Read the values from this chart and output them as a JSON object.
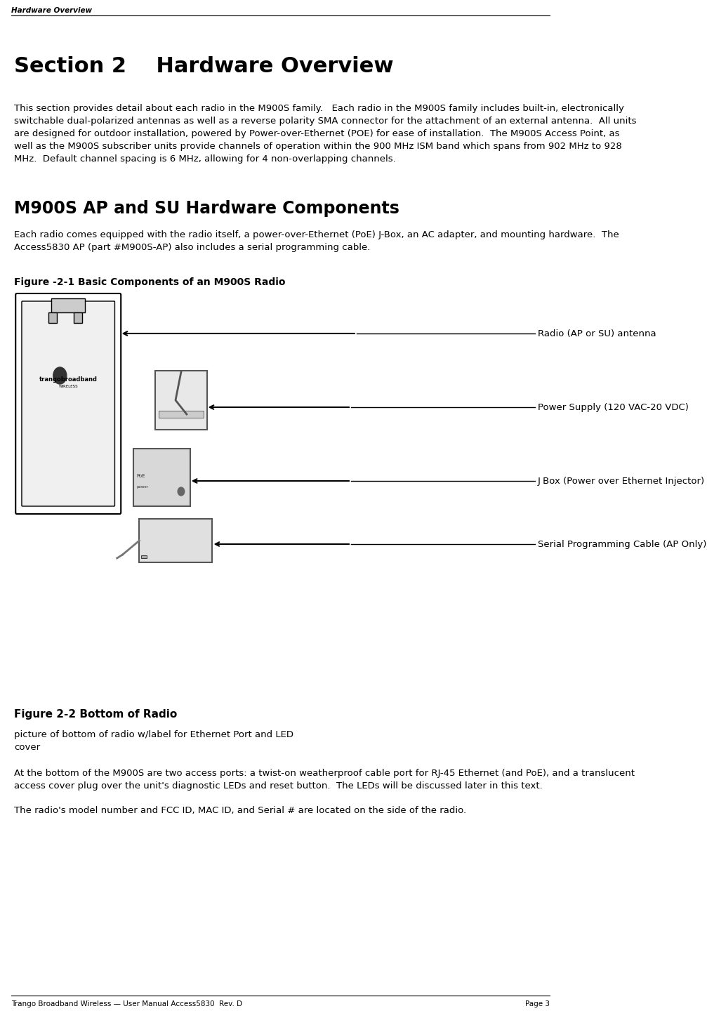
{
  "header_text": "Hardware Overview",
  "section_title": "Section 2    Hardware Overview",
  "para1": "This section provides detail about each radio in the M900S family.   Each radio in the M900S family includes built-in, electronically\nswitchable dual-polarized antennas as well as a reverse polarity SMA connector for the attachment of an external antenna.  All units\nare designed for outdoor installation, powered by Power-over-Ethernet (POE) for ease of installation.  The M900S Access Point, as\nwell as the M900S subscriber units provide channels of operation within the 900 MHz ISM band which spans from 902 MHz to 928\nMHz.  Default channel spacing is 6 MHz, allowing for 4 non-overlapping channels.",
  "subsection_title": "M900S AP and SU Hardware Components",
  "para2": "Each radio comes equipped with the radio itself, a power-over-Ethernet (PoE) J-Box, an AC adapter, and mounting hardware.  The\nAccess5830 AP (part #M900S-AP) also includes a serial programming cable.",
  "fig1_title": "Figure -2-1 Basic Components of an M900S Radio",
  "label1": "Radio (AP or SU) antenna",
  "label2": "Power Supply (120 VAC-20 VDC)",
  "label3": "J Box (Power over Ethernet Injector)",
  "label4": "Serial Programming Cable (AP Only)",
  "fig2_title": "Figure 2-2 Bottom of Radio",
  "fig2_desc": "picture of bottom of radio w/label for Ethernet Port and LED\ncover",
  "para3": "At the bottom of the M900S are two access ports: a twist-on weatherproof cable port for RJ-45 Ethernet (and PoE), and a translucent\naccess cover plug over the unit's diagnostic LEDs and reset button.  The LEDs will be discussed later in this text.",
  "para4": "The radio's model number and FCC ID, MAC ID, and Serial # are located on the side of the radio.",
  "footer_left": "Trango Broadband Wireless — User Manual Access5830  Rev. D",
  "footer_right": "Page 3",
  "bg_color": "#ffffff",
  "text_color": "#000000",
  "header_line_color": "#000000"
}
